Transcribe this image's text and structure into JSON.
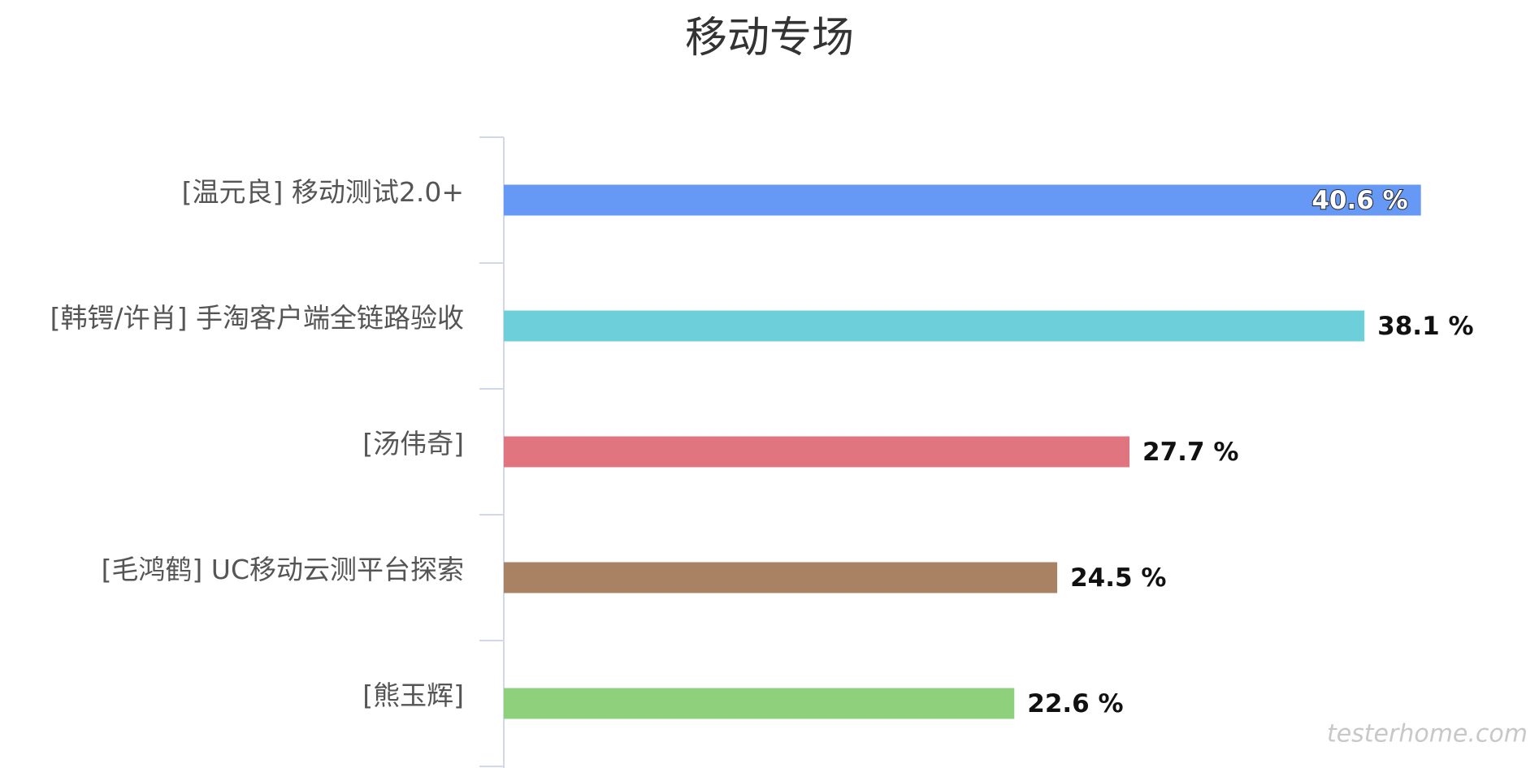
{
  "chart_data": {
    "type": "bar",
    "orientation": "horizontal",
    "title": "移动专场",
    "categories": [
      "[温元良] 移动测试2.0+",
      "[韩锷/许肖] 手淘客户端全链路验收",
      "[汤伟奇]",
      "[毛鸿鹤] UC移动云测平台探索",
      "[熊玉辉]"
    ],
    "values": [
      40.6,
      38.1,
      27.7,
      24.5,
      22.6
    ],
    "value_labels": [
      "40.6 %",
      "38.1 %",
      "27.7 %",
      "24.5 %",
      "22.6 %"
    ],
    "colors": [
      "#6699f5",
      "#6ccfd9",
      "#e07580",
      "#a98264",
      "#8fd07c"
    ],
    "watermark": "testerhome.com"
  }
}
